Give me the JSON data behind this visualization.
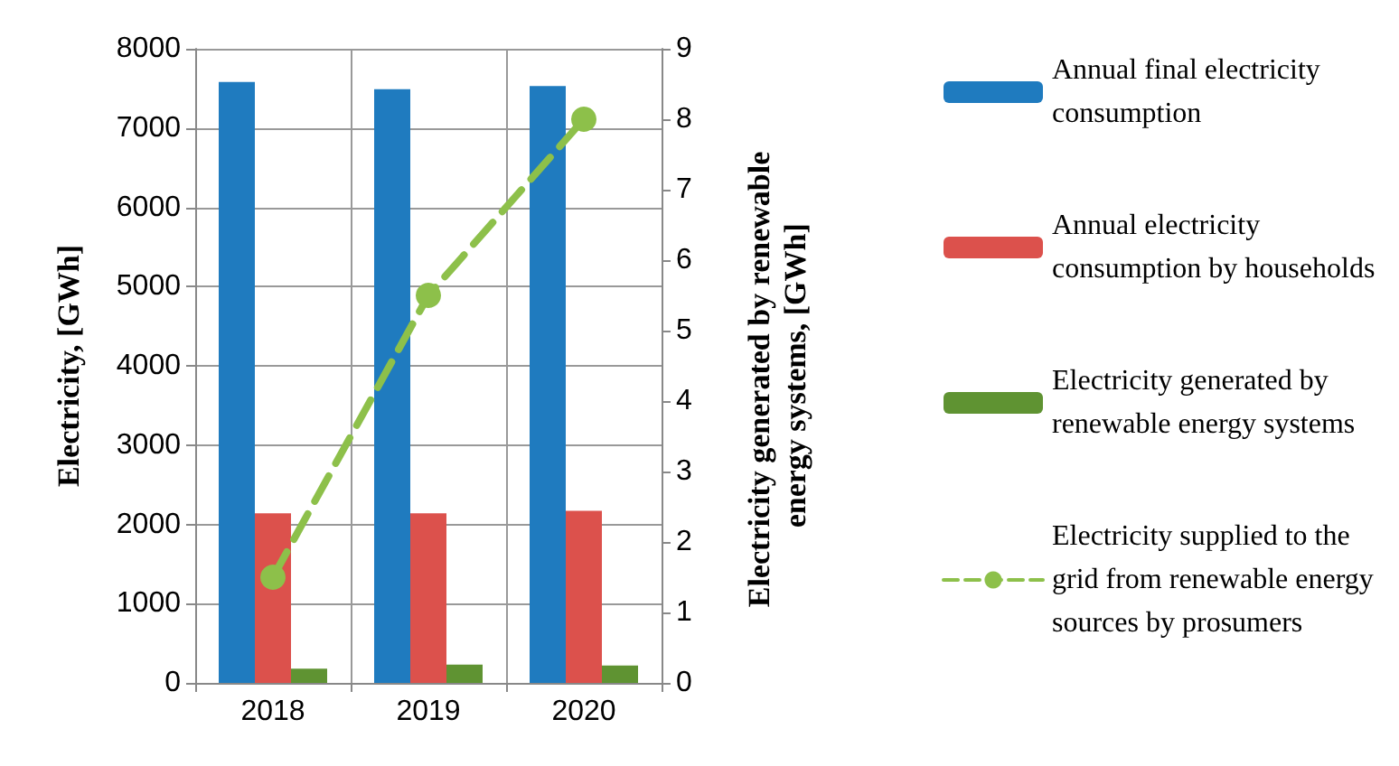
{
  "chart_data": {
    "type": "bar",
    "categories": [
      "2018",
      "2019",
      "2020"
    ],
    "ylabel": "Electricity, [GWh]",
    "y2label": "Electricity generated by renewable energy systems, [GWh]",
    "series": [
      {
        "name": "Annual final electricity consumption",
        "color": "#1f7bbf",
        "values": [
          7580,
          7490,
          7530
        ]
      },
      {
        "name": "Annual electricity consumption by households",
        "color": "#dc514c",
        "values": [
          2140,
          2140,
          2170
        ]
      },
      {
        "name": "Electricity generated by renewable energy systems",
        "color": "#5f9332",
        "values": [
          180,
          230,
          220
        ]
      },
      {
        "name": "Electricity supplied to the grid from renewable energy sources by prosumers",
        "type": "line",
        "axis": "y2",
        "color": "#8dc04a",
        "marker": "circle",
        "line_style": "dashed",
        "values": [
          1.5,
          5.5,
          8.0
        ]
      }
    ],
    "ylim": [
      0,
      8000
    ],
    "yticks": [
      0,
      1000,
      2000,
      3000,
      4000,
      5000,
      6000,
      7000,
      8000
    ],
    "y2lim": [
      0,
      9
    ],
    "y2ticks": [
      0,
      1,
      2,
      3,
      4,
      5,
      6,
      7,
      8,
      9
    ],
    "grid": true,
    "legend": "right"
  }
}
